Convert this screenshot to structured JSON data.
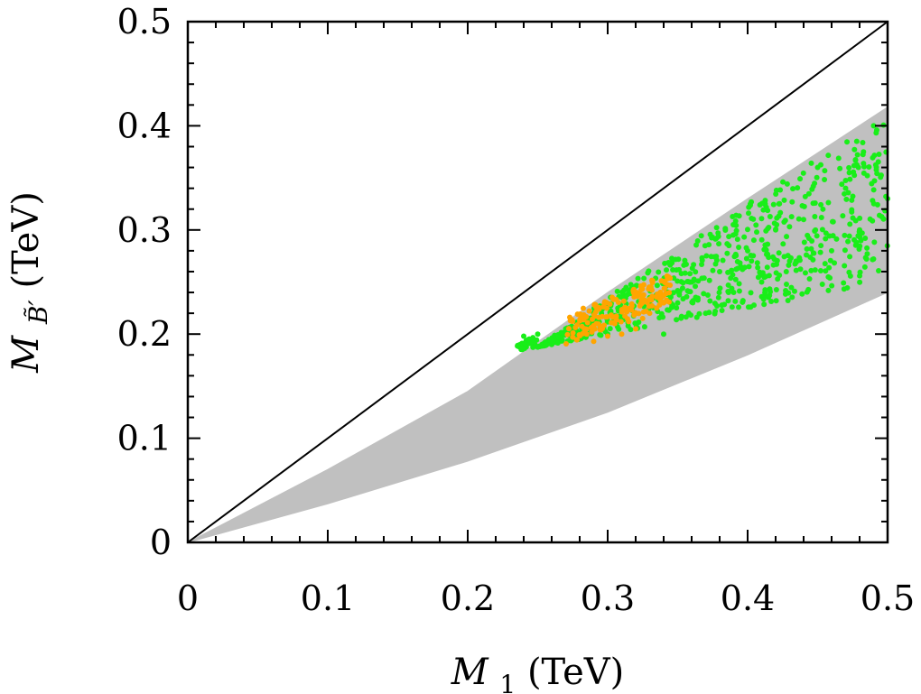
{
  "chart_data": {
    "type": "scatter",
    "title": "",
    "xlabel": {
      "var": "M",
      "sub": "1",
      "unit": "(TeV)"
    },
    "ylabel": {
      "var": "M",
      "sub": "B̃′",
      "unit": "(TeV)"
    },
    "xlim": [
      0,
      0.5
    ],
    "ylim": [
      0,
      0.5
    ],
    "xticks": [
      0,
      0.1,
      0.2,
      0.3,
      0.4,
      0.5
    ],
    "yticks": [
      0,
      0.1,
      0.2,
      0.3,
      0.4,
      0.5
    ],
    "xtick_labels": [
      "0",
      "0.1",
      "0.2",
      "0.3",
      "0.4",
      "0.5"
    ],
    "ytick_labels": [
      "0",
      "0.1",
      "0.2",
      "0.3",
      "0.4",
      "0.5"
    ],
    "reference_line": {
      "name": "diagonal",
      "points": [
        [
          0,
          0
        ],
        [
          0.5,
          0.5
        ]
      ],
      "color": "#000000"
    },
    "series": [
      {
        "name": "scan points (grey)",
        "kind": "band",
        "color": "#c0c0c0",
        "band_lower": [
          [
            0,
            0
          ],
          [
            0.1,
            0.037
          ],
          [
            0.2,
            0.078
          ],
          [
            0.3,
            0.125
          ],
          [
            0.4,
            0.18
          ],
          [
            0.5,
            0.24
          ]
        ],
        "band_upper": [
          [
            0,
            0
          ],
          [
            0.1,
            0.07
          ],
          [
            0.2,
            0.145
          ],
          [
            0.3,
            0.24
          ],
          [
            0.4,
            0.33
          ],
          [
            0.5,
            0.418
          ]
        ]
      },
      {
        "name": "green points",
        "kind": "cloud",
        "color": "#19ee19",
        "x_range": [
          0.235,
          0.5
        ],
        "points": [
          [
            0.24,
            0.198
          ],
          [
            0.25,
            0.2
          ],
          [
            0.26,
            0.19
          ],
          [
            0.27,
            0.205
          ],
          [
            0.28,
            0.21
          ],
          [
            0.29,
            0.22
          ],
          [
            0.3,
            0.2
          ],
          [
            0.31,
            0.215
          ],
          [
            0.32,
            0.22
          ],
          [
            0.33,
            0.235
          ],
          [
            0.34,
            0.2
          ],
          [
            0.35,
            0.23
          ],
          [
            0.36,
            0.25
          ],
          [
            0.37,
            0.22
          ],
          [
            0.38,
            0.26
          ],
          [
            0.39,
            0.24
          ],
          [
            0.4,
            0.28
          ],
          [
            0.41,
            0.25
          ],
          [
            0.42,
            0.3
          ],
          [
            0.43,
            0.27
          ],
          [
            0.44,
            0.31
          ],
          [
            0.45,
            0.36
          ],
          [
            0.46,
            0.28
          ],
          [
            0.47,
            0.34
          ],
          [
            0.48,
            0.3
          ],
          [
            0.49,
            0.4
          ],
          [
            0.5,
            0.33
          ]
        ]
      },
      {
        "name": "orange points",
        "kind": "cloud",
        "color": "#ffa500",
        "x_range": [
          0.27,
          0.345
        ],
        "points": [
          [
            0.275,
            0.197
          ],
          [
            0.285,
            0.2
          ],
          [
            0.29,
            0.193
          ],
          [
            0.295,
            0.205
          ],
          [
            0.3,
            0.198
          ],
          [
            0.305,
            0.21
          ],
          [
            0.31,
            0.2
          ],
          [
            0.315,
            0.212
          ],
          [
            0.32,
            0.205
          ],
          [
            0.325,
            0.215
          ],
          [
            0.33,
            0.22
          ],
          [
            0.335,
            0.225
          ],
          [
            0.34,
            0.23
          ]
        ]
      }
    ]
  }
}
